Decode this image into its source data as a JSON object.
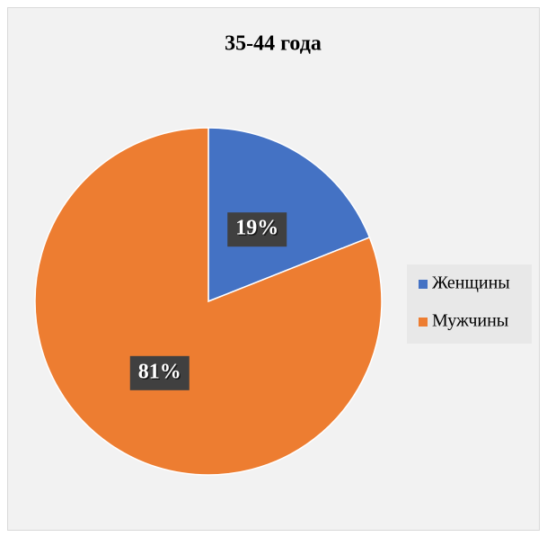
{
  "chart_data": {
    "type": "pie",
    "title": "35-44 года",
    "categories": [
      "Женщины",
      "Мужчины"
    ],
    "values": [
      19,
      81
    ],
    "value_labels": [
      "19%",
      "81%"
    ],
    "colors": [
      "#4472c4",
      "#ed7d31"
    ],
    "legend": "right"
  }
}
